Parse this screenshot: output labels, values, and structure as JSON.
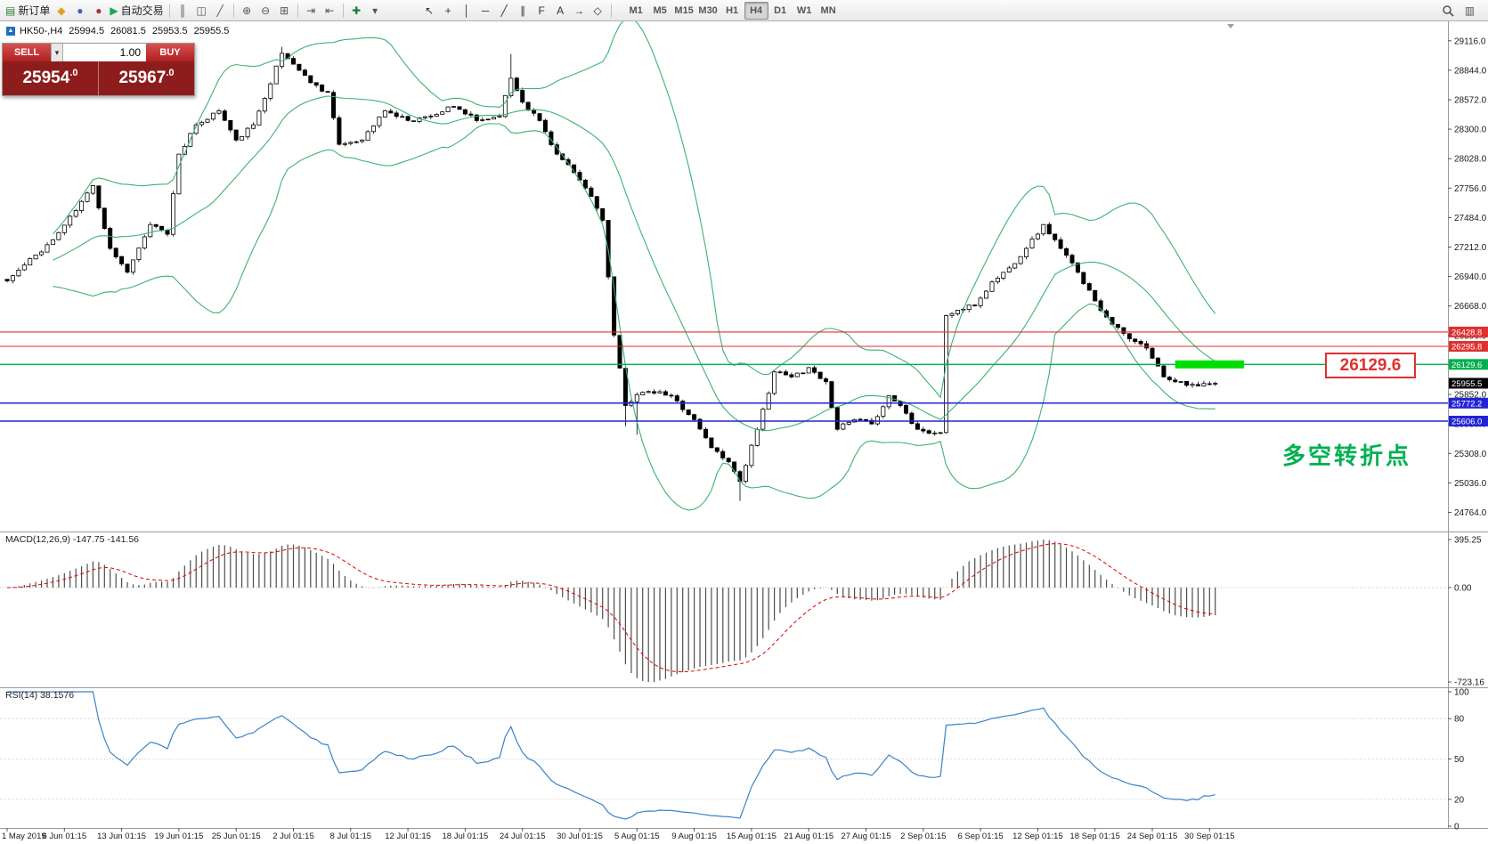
{
  "toolbar": {
    "new_order": {
      "label": "新订单",
      "glyph": "▤"
    },
    "autotrading": {
      "label": "自动交易",
      "glyph": "▶"
    },
    "window_icons": [
      {
        "name": "charts-window-icon",
        "glyph": "◆",
        "color": "#d9a520"
      },
      {
        "name": "market-watch-icon",
        "glyph": "●",
        "color": "#3a62c8"
      },
      {
        "name": "terminal-icon",
        "glyph": "●",
        "color": "#b03030"
      }
    ],
    "chart_icons": [
      {
        "name": "bar-chart-icon",
        "glyph": "║",
        "color": "#555555"
      },
      {
        "name": "candlestick-chart-icon",
        "glyph": "◫",
        "color": "#555555"
      },
      {
        "name": "line-chart-icon",
        "glyph": "╱",
        "color": "#555555"
      }
    ],
    "zoom_icons": [
      {
        "name": "zoom-in-icon",
        "glyph": "⊕",
        "color": "#555555"
      },
      {
        "name": "zoom-out-icon",
        "glyph": "⊖",
        "color": "#555555"
      },
      {
        "name": "tile-windows-icon",
        "glyph": "⊞",
        "color": "#555555"
      }
    ],
    "scroll_icons": [
      {
        "name": "auto-scroll-icon",
        "glyph": "⇥",
        "color": "#555555"
      },
      {
        "name": "chart-shift-icon",
        "glyph": "⇤",
        "color": "#555555"
      }
    ],
    "indicator_icons": [
      {
        "name": "indicators-add-icon",
        "glyph": "✚",
        "color": "#1a7f3c"
      },
      {
        "name": "periods-dropdown-icon",
        "glyph": "▾",
        "color": "#555555"
      }
    ],
    "tool_icons": [
      {
        "name": "cursor-icon",
        "glyph": "↖",
        "color": "#333333"
      },
      {
        "name": "crosshair-icon",
        "glyph": "+",
        "color": "#333333"
      },
      {
        "name": "vertical-line-icon",
        "glyph": "│",
        "color": "#333333"
      },
      {
        "name": "horizontal-line-icon",
        "glyph": "─",
        "color": "#333333"
      },
      {
        "name": "trendline-icon",
        "glyph": "╱",
        "color": "#333333"
      },
      {
        "name": "channel-icon",
        "glyph": "∥",
        "color": "#333333"
      },
      {
        "name": "fibonacci-icon",
        "glyph": "F",
        "color": "#333333"
      },
      {
        "name": "text-label-icon",
        "glyph": "A",
        "color": "#333333"
      },
      {
        "name": "arrows-icon",
        "glyph": "→",
        "color": "#333333"
      },
      {
        "name": "shapes-icon",
        "glyph": "◇",
        "color": "#333333"
      }
    ],
    "right_icons": [
      {
        "name": "layouts-icon",
        "glyph": "▥",
        "color": "#555555"
      }
    ],
    "timeframes": [
      "M1",
      "M5",
      "M15",
      "M30",
      "H1",
      "H4",
      "D1",
      "W1",
      "MN"
    ],
    "active_timeframe": "H4"
  },
  "symbol_info": {
    "symbol_period": "HK50-,H4",
    "open": "25994.5",
    "high": "26081.5",
    "low": "25953.5",
    "close": "25955.5"
  },
  "trade_panel": {
    "sell_label": "SELL",
    "buy_label": "BUY",
    "volume": "1.00",
    "dropdown_glyph": "▾",
    "sell_price": "25954.0",
    "buy_price": "25967.0"
  },
  "panels": {
    "macd_label": "MACD(12,26,9) -147.75 -141.56",
    "rsi_label": "RSI(14) 38.1576"
  },
  "annotations": {
    "price_box_text": "26129.6",
    "turning_point_text": "多空转折点"
  },
  "chart_data": [
    {
      "type": "candlestick",
      "symbol": "HK50-",
      "timeframe": "H4",
      "ohlc_current": {
        "open": 25994.5,
        "high": 26081.5,
        "low": 25953.5,
        "close": 25955.5
      },
      "bars": 212,
      "waypoints": [
        [
          0,
          26900
        ],
        [
          8,
          27280
        ],
        [
          12,
          27550
        ],
        [
          15,
          27780
        ],
        [
          18,
          27200
        ],
        [
          21,
          26980
        ],
        [
          25,
          27420
        ],
        [
          28,
          27330
        ],
        [
          30,
          28070
        ],
        [
          33,
          28340
        ],
        [
          37,
          28470
        ],
        [
          40,
          28200
        ],
        [
          43,
          28340
        ],
        [
          48,
          29000
        ],
        [
          50,
          28900
        ],
        [
          53,
          28730
        ],
        [
          56,
          28640
        ],
        [
          58,
          28160
        ],
        [
          62,
          28200
        ],
        [
          66,
          28470
        ],
        [
          70,
          28380
        ],
        [
          74,
          28420
        ],
        [
          78,
          28510
        ],
        [
          82,
          28380
        ],
        [
          86,
          28420
        ],
        [
          88,
          28770
        ],
        [
          90,
          28550
        ],
        [
          93,
          28380
        ],
        [
          96,
          28070
        ],
        [
          99,
          27900
        ],
        [
          102,
          27680
        ],
        [
          104,
          27460
        ],
        [
          106,
          26400
        ],
        [
          108,
          25750
        ],
        [
          110,
          25850
        ],
        [
          112,
          25880
        ],
        [
          116,
          25840
        ],
        [
          120,
          25620
        ],
        [
          123,
          25360
        ],
        [
          126,
          25230
        ],
        [
          128,
          25050
        ],
        [
          131,
          25530
        ],
        [
          134,
          26060
        ],
        [
          137,
          26015
        ],
        [
          140,
          26100
        ],
        [
          143,
          25970
        ],
        [
          145,
          25530
        ],
        [
          148,
          25620
        ],
        [
          151,
          25580
        ],
        [
          154,
          25840
        ],
        [
          156,
          25750
        ],
        [
          159,
          25530
        ],
        [
          162,
          25490
        ],
        [
          163,
          25500
        ],
        [
          164,
          26580
        ],
        [
          166,
          26630
        ],
        [
          169,
          26670
        ],
        [
          172,
          26890
        ],
        [
          175,
          27020
        ],
        [
          178,
          27200
        ],
        [
          181,
          27420
        ],
        [
          184,
          27200
        ],
        [
          187,
          26980
        ],
        [
          190,
          26715
        ],
        [
          193,
          26500
        ],
        [
          196,
          26365
        ],
        [
          199,
          26280
        ],
        [
          202,
          26015
        ],
        [
          205,
          25970
        ],
        [
          208,
          25930
        ],
        [
          211,
          25955.5
        ]
      ],
      "wick_overrides": {
        "48": {
          "high": 29060
        },
        "88": {
          "high": 28995
        },
        "108": {
          "low": 25560
        },
        "110": {
          "low": 25480
        },
        "128": {
          "low": 24870
        }
      },
      "bollinger": {
        "period": 20,
        "deviation": 2,
        "color": "#3CB371"
      },
      "candle_colors": {
        "up": "#ffffff",
        "down": "#000000",
        "outline": "#000000"
      },
      "y_axis": {
        "top_tick": 29116.0,
        "step": 272.0,
        "ticks": 17
      },
      "x_axis_labels": [
        "1 May 2019",
        "6 Jun 01:15",
        "13 Jun 01:15",
        "19 Jun 01:15",
        "25 Jun 01:15",
        "2 Jul 01:15",
        "8 Jul 01:15",
        "12 Jul 01:15",
        "18 Jul 01:15",
        "24 Jul 01:15",
        "30 Jul 01:15",
        "5 Aug 01:15",
        "9 Aug 01:15",
        "15 Aug 01:15",
        "21 Aug 01:15",
        "27 Aug 01:15",
        "2 Sep 01:15",
        "6 Sep 01:15",
        "12 Sep 01:15",
        "18 Sep 01:15",
        "24 Sep 01:15",
        "30 Sep 01:15"
      ],
      "horizontal_lines": [
        {
          "price": 26428.8,
          "label": "26428.8",
          "color": "#e03030",
          "width": 1.1
        },
        {
          "price": 26295.8,
          "label": "26295.8",
          "color": "#e03030",
          "width": 1.1
        },
        {
          "price": 26129.6,
          "label": "26129.6",
          "color": "#00b050",
          "width": 1.3
        },
        {
          "price": 25772.2,
          "label": "25772.2",
          "color": "#2323d6",
          "width": 1.5
        },
        {
          "price": 25606.0,
          "label": "25606.0",
          "color": "#2323d6",
          "width": 1.5
        }
      ],
      "last_price": {
        "price": 25955.5,
        "label": "25955.5",
        "color": "#000000"
      },
      "highlight_segment": {
        "price": 26129.6,
        "from_bar": 204,
        "to_bar": 216,
        "color": "#00dd00",
        "thickness": 9
      }
    },
    {
      "type": "macd",
      "params": {
        "fast": 12,
        "slow": 26,
        "signal": 9
      },
      "current_macd": -147.75,
      "current_signal": -141.56,
      "axis_labels": [
        "395.25",
        "0.00",
        "-723.16"
      ],
      "histogram_color": "#4d4d4d",
      "signal_color": "#e00000"
    },
    {
      "type": "line",
      "indicator": "RSI",
      "period": 14,
      "current": 38.1576,
      "levels": [
        100,
        80,
        50,
        20,
        0
      ],
      "level_lines": [
        80,
        50,
        20
      ],
      "color": "#3c82c8"
    }
  ]
}
